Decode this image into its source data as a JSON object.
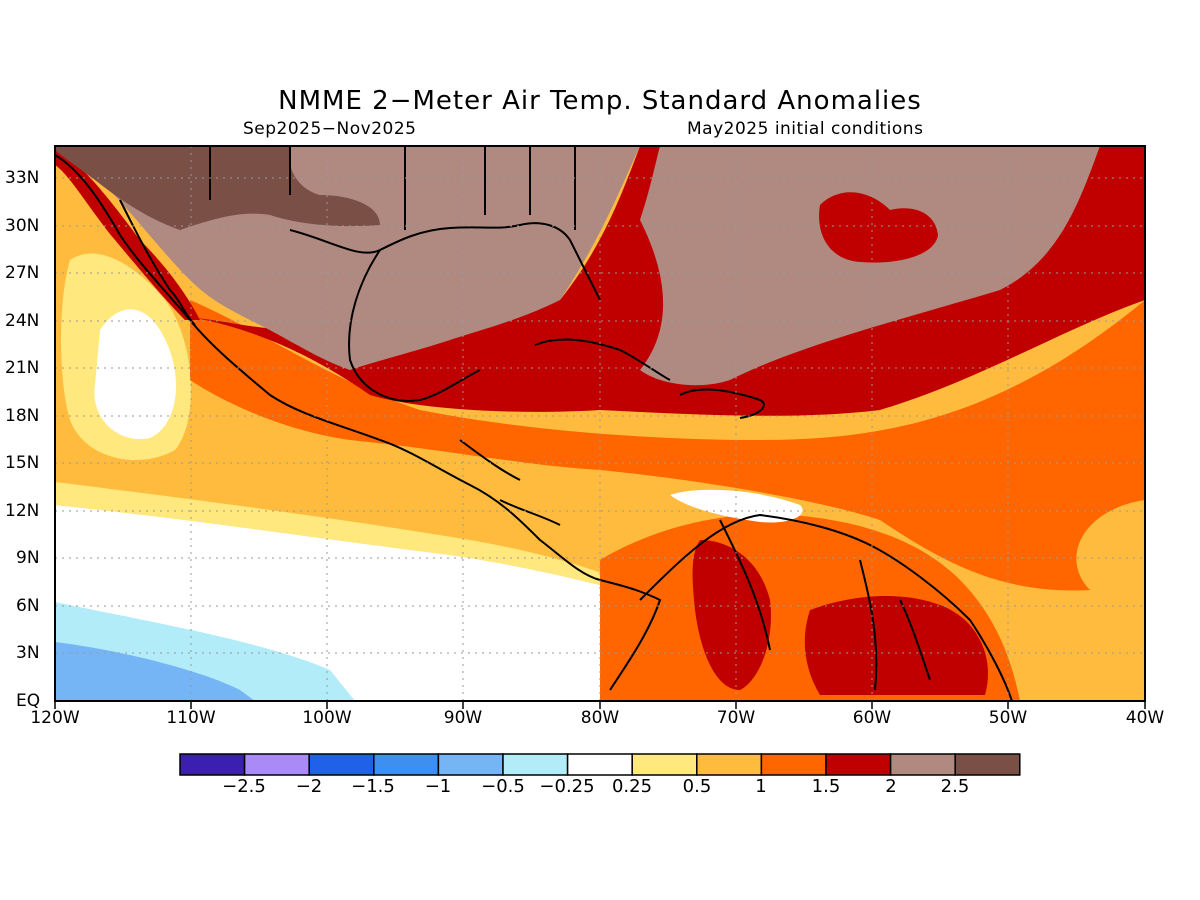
{
  "title": "NMME 2−Meter Air Temp. Standard Anomalies",
  "period": "Sep2025−Nov2025",
  "init": "May2025 initial conditions",
  "lat_labels": [
    "33N",
    "30N",
    "27N",
    "24N",
    "21N",
    "18N",
    "15N",
    "12N",
    "9N",
    "6N",
    "3N",
    "EQ"
  ],
  "lon_labels": [
    "120W",
    "110W",
    "100W",
    "90W",
    "80W",
    "70W",
    "60W",
    "50W",
    "40W"
  ],
  "colorbar": {
    "colors": [
      "#3a1fb0",
      "#a98af7",
      "#1f62e8",
      "#3d8ff2",
      "#76b5f5",
      "#b3ecf9",
      "#ffffff",
      "#ffe87d",
      "#ffbb3d",
      "#ff6600",
      "#c00000",
      "#b08a80",
      "#7a4f46"
    ],
    "labels": [
      "−2.5",
      "−2",
      "−1.5",
      "−1",
      "−0.5",
      "−0.25",
      "0.25",
      "0.5",
      "1",
      "1.5",
      "2",
      "2.5"
    ]
  }
}
